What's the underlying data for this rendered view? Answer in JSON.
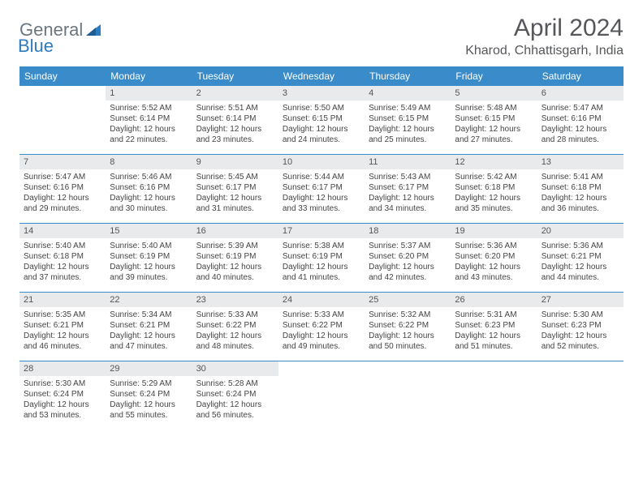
{
  "branding": {
    "logo_text_1": "General",
    "logo_text_2": "Blue",
    "logo_color_gray": "#6b7680",
    "logo_color_blue": "#2d7bc0"
  },
  "header": {
    "title": "April 2024",
    "location": "Kharod, Chhattisgarh, India"
  },
  "colors": {
    "header_bg": "#3a8bc9",
    "header_text": "#ffffff",
    "daynum_bg": "#e9eaec",
    "body_text": "#444444",
    "rule": "#3a8bc9"
  },
  "fonts": {
    "title_size": 30,
    "location_size": 16,
    "day_header_size": 12,
    "cell_size": 10
  },
  "day_names": [
    "Sunday",
    "Monday",
    "Tuesday",
    "Wednesday",
    "Thursday",
    "Friday",
    "Saturday"
  ],
  "weeks": [
    [
      {
        "empty": true
      },
      {
        "n": "1",
        "sr": "Sunrise: 5:52 AM",
        "ss": "Sunset: 6:14 PM",
        "d1": "Daylight: 12 hours",
        "d2": "and 22 minutes."
      },
      {
        "n": "2",
        "sr": "Sunrise: 5:51 AM",
        "ss": "Sunset: 6:14 PM",
        "d1": "Daylight: 12 hours",
        "d2": "and 23 minutes."
      },
      {
        "n": "3",
        "sr": "Sunrise: 5:50 AM",
        "ss": "Sunset: 6:15 PM",
        "d1": "Daylight: 12 hours",
        "d2": "and 24 minutes."
      },
      {
        "n": "4",
        "sr": "Sunrise: 5:49 AM",
        "ss": "Sunset: 6:15 PM",
        "d1": "Daylight: 12 hours",
        "d2": "and 25 minutes."
      },
      {
        "n": "5",
        "sr": "Sunrise: 5:48 AM",
        "ss": "Sunset: 6:15 PM",
        "d1": "Daylight: 12 hours",
        "d2": "and 27 minutes."
      },
      {
        "n": "6",
        "sr": "Sunrise: 5:47 AM",
        "ss": "Sunset: 6:16 PM",
        "d1": "Daylight: 12 hours",
        "d2": "and 28 minutes."
      }
    ],
    [
      {
        "n": "7",
        "sr": "Sunrise: 5:47 AM",
        "ss": "Sunset: 6:16 PM",
        "d1": "Daylight: 12 hours",
        "d2": "and 29 minutes."
      },
      {
        "n": "8",
        "sr": "Sunrise: 5:46 AM",
        "ss": "Sunset: 6:16 PM",
        "d1": "Daylight: 12 hours",
        "d2": "and 30 minutes."
      },
      {
        "n": "9",
        "sr": "Sunrise: 5:45 AM",
        "ss": "Sunset: 6:17 PM",
        "d1": "Daylight: 12 hours",
        "d2": "and 31 minutes."
      },
      {
        "n": "10",
        "sr": "Sunrise: 5:44 AM",
        "ss": "Sunset: 6:17 PM",
        "d1": "Daylight: 12 hours",
        "d2": "and 33 minutes."
      },
      {
        "n": "11",
        "sr": "Sunrise: 5:43 AM",
        "ss": "Sunset: 6:17 PM",
        "d1": "Daylight: 12 hours",
        "d2": "and 34 minutes."
      },
      {
        "n": "12",
        "sr": "Sunrise: 5:42 AM",
        "ss": "Sunset: 6:18 PM",
        "d1": "Daylight: 12 hours",
        "d2": "and 35 minutes."
      },
      {
        "n": "13",
        "sr": "Sunrise: 5:41 AM",
        "ss": "Sunset: 6:18 PM",
        "d1": "Daylight: 12 hours",
        "d2": "and 36 minutes."
      }
    ],
    [
      {
        "n": "14",
        "sr": "Sunrise: 5:40 AM",
        "ss": "Sunset: 6:18 PM",
        "d1": "Daylight: 12 hours",
        "d2": "and 37 minutes."
      },
      {
        "n": "15",
        "sr": "Sunrise: 5:40 AM",
        "ss": "Sunset: 6:19 PM",
        "d1": "Daylight: 12 hours",
        "d2": "and 39 minutes."
      },
      {
        "n": "16",
        "sr": "Sunrise: 5:39 AM",
        "ss": "Sunset: 6:19 PM",
        "d1": "Daylight: 12 hours",
        "d2": "and 40 minutes."
      },
      {
        "n": "17",
        "sr": "Sunrise: 5:38 AM",
        "ss": "Sunset: 6:19 PM",
        "d1": "Daylight: 12 hours",
        "d2": "and 41 minutes."
      },
      {
        "n": "18",
        "sr": "Sunrise: 5:37 AM",
        "ss": "Sunset: 6:20 PM",
        "d1": "Daylight: 12 hours",
        "d2": "and 42 minutes."
      },
      {
        "n": "19",
        "sr": "Sunrise: 5:36 AM",
        "ss": "Sunset: 6:20 PM",
        "d1": "Daylight: 12 hours",
        "d2": "and 43 minutes."
      },
      {
        "n": "20",
        "sr": "Sunrise: 5:36 AM",
        "ss": "Sunset: 6:21 PM",
        "d1": "Daylight: 12 hours",
        "d2": "and 44 minutes."
      }
    ],
    [
      {
        "n": "21",
        "sr": "Sunrise: 5:35 AM",
        "ss": "Sunset: 6:21 PM",
        "d1": "Daylight: 12 hours",
        "d2": "and 46 minutes."
      },
      {
        "n": "22",
        "sr": "Sunrise: 5:34 AM",
        "ss": "Sunset: 6:21 PM",
        "d1": "Daylight: 12 hours",
        "d2": "and 47 minutes."
      },
      {
        "n": "23",
        "sr": "Sunrise: 5:33 AM",
        "ss": "Sunset: 6:22 PM",
        "d1": "Daylight: 12 hours",
        "d2": "and 48 minutes."
      },
      {
        "n": "24",
        "sr": "Sunrise: 5:33 AM",
        "ss": "Sunset: 6:22 PM",
        "d1": "Daylight: 12 hours",
        "d2": "and 49 minutes."
      },
      {
        "n": "25",
        "sr": "Sunrise: 5:32 AM",
        "ss": "Sunset: 6:22 PM",
        "d1": "Daylight: 12 hours",
        "d2": "and 50 minutes."
      },
      {
        "n": "26",
        "sr": "Sunrise: 5:31 AM",
        "ss": "Sunset: 6:23 PM",
        "d1": "Daylight: 12 hours",
        "d2": "and 51 minutes."
      },
      {
        "n": "27",
        "sr": "Sunrise: 5:30 AM",
        "ss": "Sunset: 6:23 PM",
        "d1": "Daylight: 12 hours",
        "d2": "and 52 minutes."
      }
    ],
    [
      {
        "n": "28",
        "sr": "Sunrise: 5:30 AM",
        "ss": "Sunset: 6:24 PM",
        "d1": "Daylight: 12 hours",
        "d2": "and 53 minutes."
      },
      {
        "n": "29",
        "sr": "Sunrise: 5:29 AM",
        "ss": "Sunset: 6:24 PM",
        "d1": "Daylight: 12 hours",
        "d2": "and 55 minutes."
      },
      {
        "n": "30",
        "sr": "Sunrise: 5:28 AM",
        "ss": "Sunset: 6:24 PM",
        "d1": "Daylight: 12 hours",
        "d2": "and 56 minutes."
      },
      {
        "empty": true
      },
      {
        "empty": true
      },
      {
        "empty": true
      },
      {
        "empty": true
      }
    ]
  ]
}
